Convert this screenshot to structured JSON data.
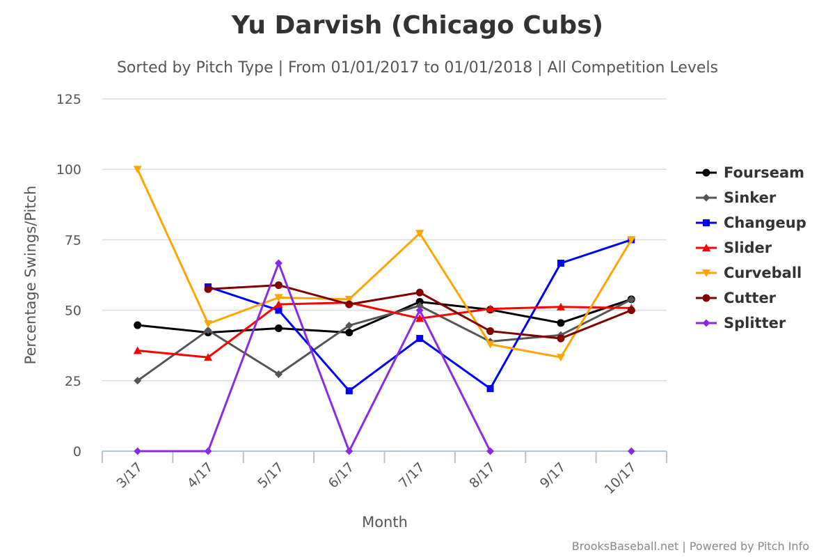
{
  "chart_data": {
    "type": "line",
    "title": "Yu Darvish (Chicago Cubs)",
    "subtitle": "Sorted by Pitch Type | From 01/01/2017 to 01/01/2018 | All Competition Levels",
    "xlabel": "Month",
    "ylabel": "Percentage Swings/Pitch",
    "ylim": [
      0,
      125
    ],
    "yticks": [
      0,
      25,
      50,
      75,
      100,
      125
    ],
    "categories": [
      "3/17",
      "4/17",
      "5/17",
      "6/17",
      "7/17",
      "8/17",
      "9/17",
      "10/17"
    ],
    "grid": true,
    "legend_position": "right",
    "series": [
      {
        "name": "Fourseam",
        "color": "#000000",
        "marker": "circle",
        "values": [
          44.7,
          42.1,
          43.6,
          42.1,
          53.0,
          50.2,
          45.5,
          53.9
        ]
      },
      {
        "name": "Sinker",
        "color": "#555555",
        "marker": "diamond",
        "values": [
          25.0,
          42.9,
          27.3,
          44.6,
          51.6,
          38.9,
          41.2,
          53.8
        ]
      },
      {
        "name": "Changeup",
        "color": "#0000ff",
        "marker": "square",
        "values": [
          null,
          58.3,
          50.0,
          21.4,
          40.0,
          22.2,
          66.7,
          75.0
        ]
      },
      {
        "name": "Slider",
        "color": "#ff0000",
        "marker": "triangle",
        "values": [
          35.7,
          33.3,
          52.1,
          52.7,
          47.1,
          50.5,
          51.2,
          50.8
        ]
      },
      {
        "name": "Curveball",
        "color": "#ffa500",
        "marker": "triangle-down",
        "values": [
          100.0,
          45.2,
          54.5,
          53.9,
          77.3,
          37.9,
          33.3,
          75.0
        ]
      },
      {
        "name": "Cutter",
        "color": "#800000",
        "marker": "circle",
        "values": [
          null,
          57.5,
          58.9,
          52.1,
          56.3,
          42.6,
          40.0,
          50.0
        ]
      },
      {
        "name": "Splitter",
        "color": "#8a2be2",
        "marker": "diamond",
        "values": [
          0,
          0,
          66.7,
          0,
          50.0,
          0,
          null,
          0
        ]
      }
    ]
  },
  "credits": "BrooksBaseball.net | Powered by Pitch Info"
}
